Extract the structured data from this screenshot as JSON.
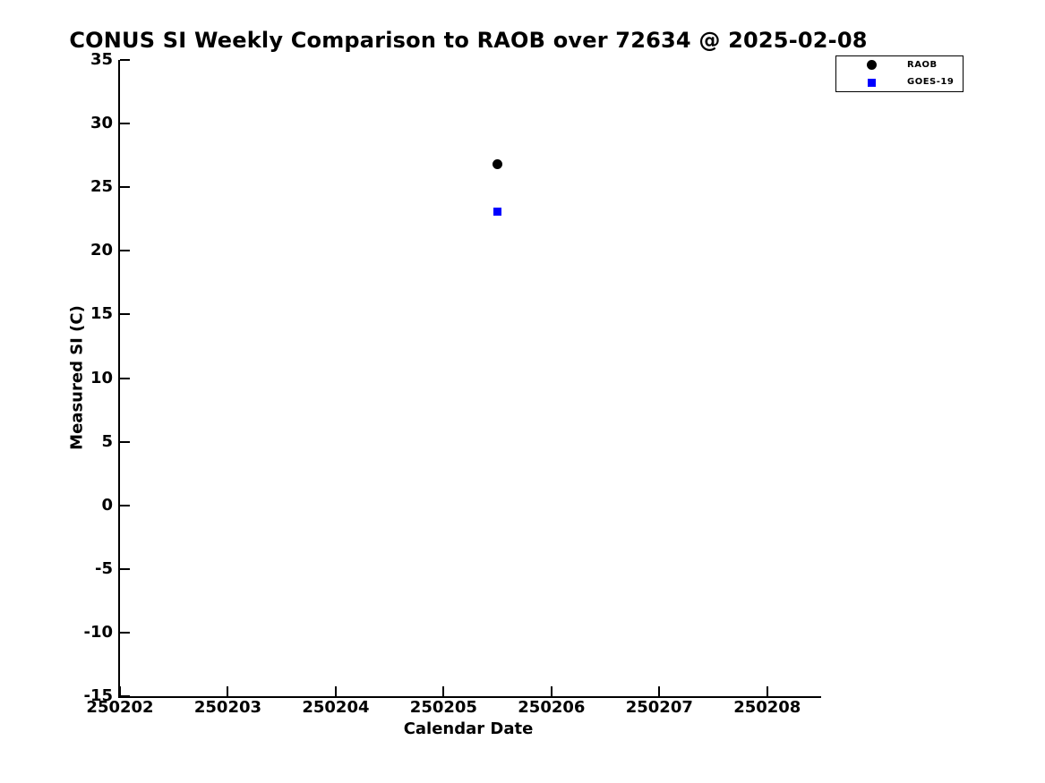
{
  "page": {
    "background": "#ffffff",
    "text_color": "#000000"
  },
  "chart_data": {
    "type": "scatter",
    "title": "CONUS SI Weekly Comparison to RAOB over 72634 @ 2025-02-08",
    "xlabel": "Calendar Date",
    "ylabel": "Measured SI (C)",
    "xlim": [
      250202,
      250208.5
    ],
    "ylim": [
      -15,
      35
    ],
    "xticks": [
      250202,
      250203,
      250204,
      250205,
      250206,
      250207,
      250208
    ],
    "yticks": [
      -15,
      -10,
      -5,
      0,
      5,
      10,
      15,
      20,
      25,
      30,
      35
    ],
    "grid": false,
    "axis_color": "#000000",
    "legend": {
      "position": "outside-top-right",
      "border_color": "#000000"
    },
    "series": [
      {
        "name": "RAOB",
        "marker": "circle",
        "color": "#000000",
        "marker_size_px": 11,
        "points": [
          {
            "x": 250205.5,
            "y": 26.8
          }
        ]
      },
      {
        "name": "GOES-19",
        "marker": "square",
        "color": "#0000ff",
        "marker_size_px": 9,
        "points": [
          {
            "x": 250205.5,
            "y": 23.1
          }
        ]
      }
    ]
  }
}
